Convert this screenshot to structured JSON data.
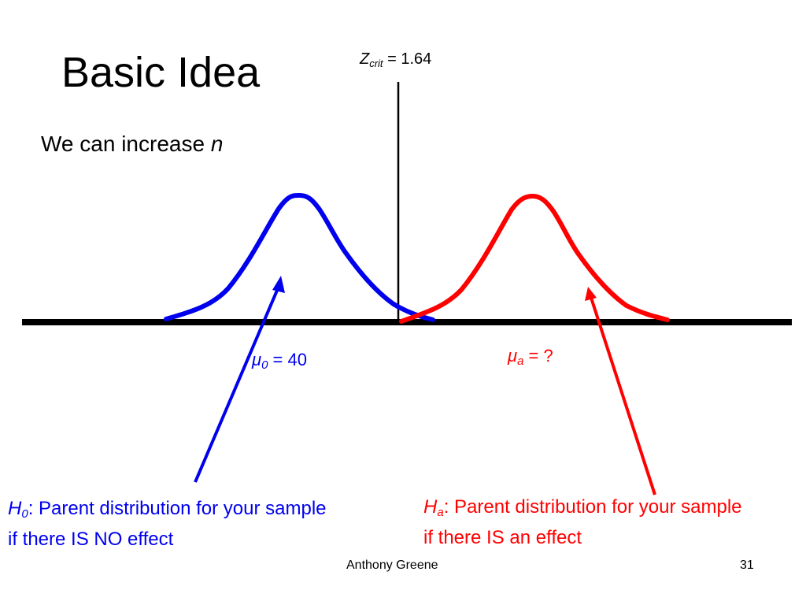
{
  "slide": {
    "title": "Basic Idea",
    "subtitle_text": "We can increase ",
    "subtitle_var": "n",
    "footer_author": "Anthony Greene",
    "slide_number": "31"
  },
  "critical_line": {
    "symbol": "Z",
    "subscript": "crit",
    "value_text": " = 1.64"
  },
  "null_distribution": {
    "mean_symbol": "μ",
    "mean_subscript": "0",
    "mean_text": " = 40",
    "hypothesis_symbol": "H",
    "hypothesis_subscript": "0",
    "hypothesis_line1": ":  Parent distribution for your sample",
    "hypothesis_line2": "if there IS NO effect",
    "color": "#0000ee"
  },
  "alt_distribution": {
    "mean_symbol": "μ",
    "mean_subscript": "a",
    "mean_text": " = ?",
    "hypothesis_symbol": "H",
    "hypothesis_subscript": "a",
    "hypothesis_line1": ": Parent distribution for your sample",
    "hypothesis_line2": "if there IS an effect",
    "color": "#ff0000"
  }
}
